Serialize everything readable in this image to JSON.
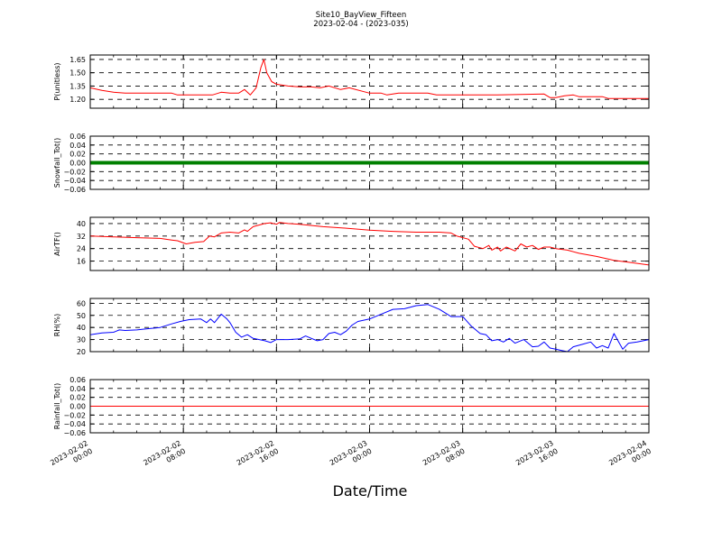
{
  "chart_data": {
    "type": "line",
    "title": "Site10_BayView_Fifteen",
    "subtitle": "2023-02-04 - (2023-035)",
    "xlabel": "Date/Time",
    "xlim": [
      "2023-02-02 00:00",
      "2023-02-04 00:00"
    ],
    "x_ticks": [
      {
        "value": "2023-02-02 00:00",
        "line1": "2023-02-02",
        "line2": "00:00"
      },
      {
        "value": "2023-02-02 08:00",
        "line1": "2023-02-02",
        "line2": "08:00"
      },
      {
        "value": "2023-02-02 16:00",
        "line1": "2023-02-02",
        "line2": "16:00"
      },
      {
        "value": "2023-02-03 00:00",
        "line1": "2023-02-03",
        "line2": "00:00"
      },
      {
        "value": "2023-02-03 08:00",
        "line1": "2023-02-03",
        "line2": "08:00"
      },
      {
        "value": "2023-02-03 16:00",
        "line1": "2023-02-03",
        "line2": "16:00"
      },
      {
        "value": "2023-02-04 00:00",
        "line1": "2023-02-04",
        "line2": "00:00"
      }
    ],
    "grid": true,
    "panels": [
      {
        "ylabel": "P(unitless)",
        "ylim": [
          1.1,
          1.7
        ],
        "yticks": [
          1.2,
          1.35,
          1.5,
          1.65
        ],
        "ytick_labels": [
          "1.20",
          "1.35",
          "1.50",
          "1.65"
        ],
        "color": "#ff0000",
        "line_width": 1,
        "data": [
          [
            "2023-02-02 00:00",
            1.33
          ],
          [
            "2023-02-02 01:00",
            1.3
          ],
          [
            "2023-02-02 02:00",
            1.28
          ],
          [
            "2023-02-02 03:00",
            1.27
          ],
          [
            "2023-02-02 04:00",
            1.27
          ],
          [
            "2023-02-02 05:00",
            1.27
          ],
          [
            "2023-02-02 06:00",
            1.27
          ],
          [
            "2023-02-02 07:00",
            1.27
          ],
          [
            "2023-02-02 07:30",
            1.25
          ],
          [
            "2023-02-02 09:00",
            1.25
          ],
          [
            "2023-02-02 10:30",
            1.25
          ],
          [
            "2023-02-02 11:15",
            1.28
          ],
          [
            "2023-02-02 12:00",
            1.27
          ],
          [
            "2023-02-02 12:45",
            1.27
          ],
          [
            "2023-02-02 13:15",
            1.31
          ],
          [
            "2023-02-02 13:45",
            1.25
          ],
          [
            "2023-02-02 14:15",
            1.33
          ],
          [
            "2023-02-02 14:40",
            1.56
          ],
          [
            "2023-02-02 14:55",
            1.65
          ],
          [
            "2023-02-02 15:10",
            1.5
          ],
          [
            "2023-02-02 15:35",
            1.4
          ],
          [
            "2023-02-02 16:00",
            1.37
          ],
          [
            "2023-02-02 17:00",
            1.35
          ],
          [
            "2023-02-02 18:00",
            1.34
          ],
          [
            "2023-02-02 19:00",
            1.34
          ],
          [
            "2023-02-02 19:45",
            1.33
          ],
          [
            "2023-02-02 20:30",
            1.35
          ],
          [
            "2023-02-02 21:30",
            1.31
          ],
          [
            "2023-02-02 22:15",
            1.33
          ],
          [
            "2023-02-03 00:00",
            1.27
          ],
          [
            "2023-02-03 01:00",
            1.27
          ],
          [
            "2023-02-03 01:30",
            1.25
          ],
          [
            "2023-02-03 02:30",
            1.27
          ],
          [
            "2023-02-03 05:00",
            1.27
          ],
          [
            "2023-02-03 05:45",
            1.25
          ],
          [
            "2023-02-03 08:00",
            1.25
          ],
          [
            "2023-02-03 11:00",
            1.25
          ],
          [
            "2023-02-03 15:00",
            1.26
          ],
          [
            "2023-02-03 15:30",
            1.22
          ],
          [
            "2023-02-03 16:00",
            1.22
          ],
          [
            "2023-02-03 16:45",
            1.24
          ],
          [
            "2023-02-03 17:30",
            1.25
          ],
          [
            "2023-02-03 18:00",
            1.23
          ],
          [
            "2023-02-03 20:00",
            1.23
          ],
          [
            "2023-02-03 20:30",
            1.21
          ],
          [
            "2023-02-04 00:00",
            1.21
          ]
        ]
      },
      {
        "ylabel": "Snowfall_Tot()",
        "ylim": [
          -0.06,
          0.06
        ],
        "yticks": [
          -0.06,
          -0.04,
          -0.02,
          0.0,
          0.02,
          0.04,
          0.06
        ],
        "ytick_labels": [
          "−0.06",
          "−0.04",
          "−0.02",
          "0.00",
          "0.02",
          "0.04",
          "0.06"
        ],
        "color": "#008000",
        "line_width": 4,
        "data": [
          [
            "2023-02-02 00:00",
            0.0
          ],
          [
            "2023-02-04 00:00",
            0.0
          ]
        ]
      },
      {
        "ylabel": "AirTF()",
        "ylim": [
          10,
          44
        ],
        "yticks": [
          16,
          24,
          32,
          40
        ],
        "ytick_labels": [
          "16",
          "24",
          "32",
          "40"
        ],
        "color": "#ff0000",
        "line_width": 1,
        "data": [
          [
            "2023-02-02 00:00",
            32
          ],
          [
            "2023-02-02 02:00",
            31.5
          ],
          [
            "2023-02-02 04:00",
            31
          ],
          [
            "2023-02-02 06:00",
            30.5
          ],
          [
            "2023-02-02 07:00",
            29.5
          ],
          [
            "2023-02-02 07:30",
            29
          ],
          [
            "2023-02-02 08:15",
            27
          ],
          [
            "2023-02-02 09:00",
            28
          ],
          [
            "2023-02-02 09:45",
            28.5
          ],
          [
            "2023-02-02 10:15",
            32
          ],
          [
            "2023-02-02 10:40",
            31.5
          ],
          [
            "2023-02-02 11:15",
            34
          ],
          [
            "2023-02-02 12:00",
            34.5
          ],
          [
            "2023-02-02 12:45",
            34
          ],
          [
            "2023-02-02 13:15",
            36
          ],
          [
            "2023-02-02 13:30",
            35
          ],
          [
            "2023-02-02 14:00",
            38
          ],
          [
            "2023-02-02 15:00",
            40
          ],
          [
            "2023-02-02 15:30",
            40.5
          ],
          [
            "2023-02-02 16:00",
            39.5
          ],
          [
            "2023-02-02 16:15",
            40.7
          ],
          [
            "2023-02-02 17:00",
            40
          ],
          [
            "2023-02-02 18:00",
            39.5
          ],
          [
            "2023-02-02 20:00",
            38
          ],
          [
            "2023-02-02 22:00",
            37
          ],
          [
            "2023-02-03 00:00",
            35.8
          ],
          [
            "2023-02-03 02:00",
            35
          ],
          [
            "2023-02-03 04:00",
            34.5
          ],
          [
            "2023-02-03 06:00",
            34.5
          ],
          [
            "2023-02-03 07:00",
            34
          ],
          [
            "2023-02-03 07:30",
            32
          ],
          [
            "2023-02-03 08:30",
            30
          ],
          [
            "2023-02-03 09:00",
            25.5
          ],
          [
            "2023-02-03 09:45",
            24
          ],
          [
            "2023-02-03 10:15",
            26
          ],
          [
            "2023-02-03 10:30",
            23
          ],
          [
            "2023-02-03 11:00",
            25
          ],
          [
            "2023-02-03 11:15",
            22.5
          ],
          [
            "2023-02-03 11:45",
            25
          ],
          [
            "2023-02-03 12:30",
            22.5
          ],
          [
            "2023-02-03 13:00",
            27
          ],
          [
            "2023-02-03 13:30",
            25
          ],
          [
            "2023-02-03 14:00",
            26
          ],
          [
            "2023-02-03 14:30",
            23.5
          ],
          [
            "2023-02-03 15:00",
            25
          ],
          [
            "2023-02-03 15:30",
            25
          ],
          [
            "2023-02-03 16:00",
            24
          ],
          [
            "2023-02-03 17:00",
            23
          ],
          [
            "2023-02-03 18:00",
            21
          ],
          [
            "2023-02-03 19:30",
            19
          ],
          [
            "2023-02-03 21:00",
            16.5
          ],
          [
            "2023-02-03 22:30",
            15
          ],
          [
            "2023-02-04 00:00",
            13.5
          ]
        ]
      },
      {
        "ylabel": "RH(%)",
        "ylim": [
          20,
          64
        ],
        "yticks": [
          20,
          30,
          40,
          50,
          60
        ],
        "ytick_labels": [
          "20",
          "30",
          "40",
          "50",
          "60"
        ],
        "color": "#0000ff",
        "line_width": 1,
        "data": [
          [
            "2023-02-02 00:00",
            34
          ],
          [
            "2023-02-02 01:00",
            35.5
          ],
          [
            "2023-02-02 02:00",
            36
          ],
          [
            "2023-02-02 02:30",
            38
          ],
          [
            "2023-02-02 03:00",
            37.5
          ],
          [
            "2023-02-02 04:00",
            38
          ],
          [
            "2023-02-02 05:00",
            39
          ],
          [
            "2023-02-02 06:00",
            40
          ],
          [
            "2023-02-02 07:00",
            43
          ],
          [
            "2023-02-02 07:45",
            45
          ],
          [
            "2023-02-02 08:30",
            46.5
          ],
          [
            "2023-02-02 09:30",
            47
          ],
          [
            "2023-02-02 10:00",
            44
          ],
          [
            "2023-02-02 10:20",
            47
          ],
          [
            "2023-02-02 10:40",
            44
          ],
          [
            "2023-02-02 11:15",
            51
          ],
          [
            "2023-02-02 11:45",
            47
          ],
          [
            "2023-02-02 12:00",
            44
          ],
          [
            "2023-02-02 12:30",
            36
          ],
          [
            "2023-02-02 13:00",
            32
          ],
          [
            "2023-02-02 13:30",
            34
          ],
          [
            "2023-02-02 14:00",
            31
          ],
          [
            "2023-02-02 15:00",
            29
          ],
          [
            "2023-02-02 15:30",
            27.5
          ],
          [
            "2023-02-02 16:00",
            30
          ],
          [
            "2023-02-02 17:00",
            30
          ],
          [
            "2023-02-02 18:00",
            30.5
          ],
          [
            "2023-02-02 18:30",
            33
          ],
          [
            "2023-02-02 19:00",
            31
          ],
          [
            "2023-02-02 19:30",
            29
          ],
          [
            "2023-02-02 20:00",
            30
          ],
          [
            "2023-02-02 20:30",
            35
          ],
          [
            "2023-02-02 21:00",
            36
          ],
          [
            "2023-02-02 21:30",
            34
          ],
          [
            "2023-02-02 22:00",
            37
          ],
          [
            "2023-02-02 22:30",
            42
          ],
          [
            "2023-02-02 23:00",
            45
          ],
          [
            "2023-02-03 00:00",
            47
          ],
          [
            "2023-02-03 01:00",
            51
          ],
          [
            "2023-02-03 02:00",
            55
          ],
          [
            "2023-02-03 03:00",
            55.5
          ],
          [
            "2023-02-03 04:00",
            58
          ],
          [
            "2023-02-03 05:00",
            59
          ],
          [
            "2023-02-03 06:00",
            55
          ],
          [
            "2023-02-03 07:00",
            49
          ],
          [
            "2023-02-03 08:00",
            49
          ],
          [
            "2023-02-03 08:45",
            41
          ],
          [
            "2023-02-03 09:30",
            35
          ],
          [
            "2023-02-03 10:00",
            34
          ],
          [
            "2023-02-03 10:30",
            29
          ],
          [
            "2023-02-03 11:00",
            30
          ],
          [
            "2023-02-03 11:30",
            28
          ],
          [
            "2023-02-03 12:00",
            31
          ],
          [
            "2023-02-03 12:30",
            27
          ],
          [
            "2023-02-03 13:15",
            30
          ],
          [
            "2023-02-03 14:00",
            24
          ],
          [
            "2023-02-03 14:30",
            24.5
          ],
          [
            "2023-02-03 15:00",
            28
          ],
          [
            "2023-02-03 15:30",
            23
          ],
          [
            "2023-02-03 16:00",
            22
          ],
          [
            "2023-02-03 16:30",
            21
          ],
          [
            "2023-02-03 17:00",
            20
          ],
          [
            "2023-02-03 17:30",
            24
          ],
          [
            "2023-02-03 18:15",
            26
          ],
          [
            "2023-02-03 19:00",
            28
          ],
          [
            "2023-02-03 19:30",
            23
          ],
          [
            "2023-02-03 20:00",
            25
          ],
          [
            "2023-02-03 20:30",
            23
          ],
          [
            "2023-02-03 21:00",
            35
          ],
          [
            "2023-02-03 21:45",
            22
          ],
          [
            "2023-02-03 22:15",
            27
          ],
          [
            "2023-02-03 23:00",
            28
          ],
          [
            "2023-02-04 00:00",
            30
          ]
        ]
      },
      {
        "ylabel": "Rainfall_Tot()",
        "ylim": [
          -0.06,
          0.06
        ],
        "yticks": [
          -0.06,
          -0.04,
          -0.02,
          0.0,
          0.02,
          0.04,
          0.06
        ],
        "ytick_labels": [
          "−0.06",
          "−0.04",
          "−0.02",
          "0.00",
          "0.02",
          "0.04",
          "0.06"
        ],
        "color": "#ff0000",
        "line_width": 1,
        "data": [
          [
            "2023-02-02 00:00",
            0.0
          ],
          [
            "2023-02-04 00:00",
            0.0
          ]
        ]
      }
    ]
  }
}
